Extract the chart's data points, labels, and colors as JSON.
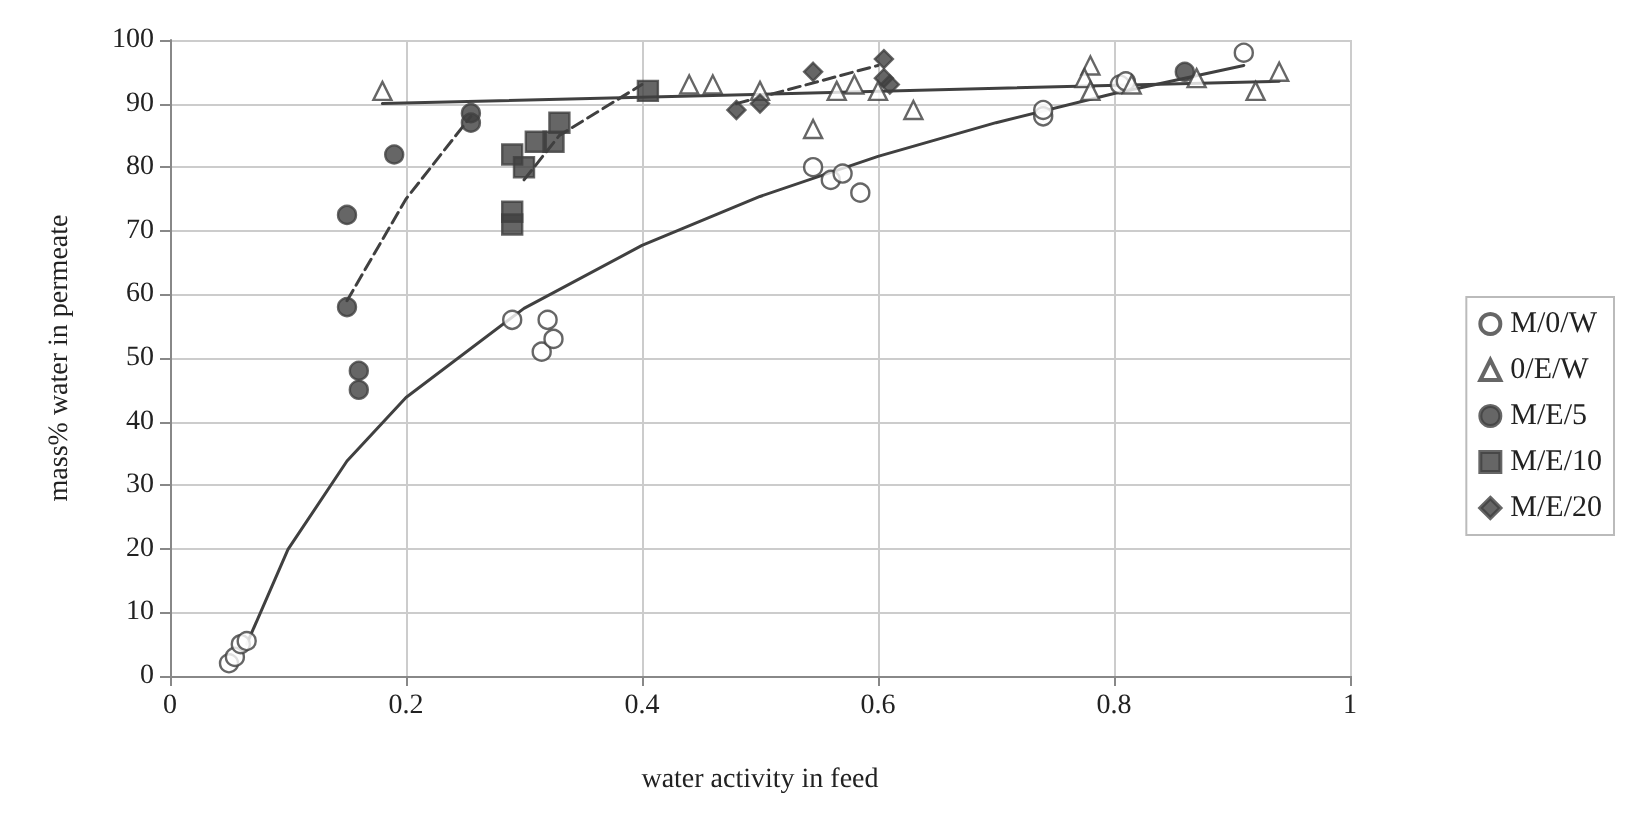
{
  "chart_data": {
    "type": "scatter",
    "xlabel": "water activity in feed",
    "ylabel": "mass% water in permeate",
    "xlim": [
      0,
      1
    ],
    "xticks": [
      0,
      0.2,
      0.4,
      0.6,
      0.8,
      1
    ],
    "ylim": [
      0,
      100
    ],
    "yticks": [
      0,
      10,
      20,
      30,
      40,
      50,
      60,
      70,
      80,
      90,
      100
    ],
    "grid": true,
    "legend": "right",
    "series": [
      {
        "name": "M/0/W",
        "color": "#ffffff",
        "marker": "circle",
        "x": [
          0.05,
          0.055,
          0.06,
          0.065,
          0.29,
          0.32,
          0.315,
          0.325,
          0.545,
          0.56,
          0.57,
          0.585,
          0.74,
          0.74,
          0.805,
          0.81,
          0.91
        ],
        "values": [
          2,
          3,
          5,
          5.5,
          56,
          56,
          51,
          53,
          80,
          78,
          79,
          76,
          88,
          89,
          93,
          93.5,
          98
        ]
      },
      {
        "name": "0/E/W",
        "color": "#ffffff",
        "marker": "triangle",
        "x": [
          0.18,
          0.44,
          0.46,
          0.5,
          0.545,
          0.565,
          0.58,
          0.6,
          0.63,
          0.78,
          0.775,
          0.78,
          0.815,
          0.87,
          0.92,
          0.94
        ],
        "values": [
          92,
          93,
          93,
          92,
          86,
          92,
          93,
          92,
          89,
          96,
          94,
          92,
          93,
          94,
          92,
          95
        ]
      },
      {
        "name": "M/E/5",
        "color": "#404040",
        "marker": "circle",
        "x": [
          0.15,
          0.15,
          0.16,
          0.16,
          0.19,
          0.255,
          0.255,
          0.86
        ],
        "values": [
          58,
          72.5,
          45,
          48,
          82,
          87,
          88.5,
          95
        ]
      },
      {
        "name": "M/E/10",
        "color": "#404040",
        "marker": "square",
        "x": [
          0.29,
          0.29,
          0.29,
          0.3,
          0.31,
          0.325,
          0.33,
          0.405
        ],
        "values": [
          71,
          73,
          82,
          80,
          84,
          84,
          87,
          92
        ]
      },
      {
        "name": "M/E/20",
        "color": "#404040",
        "marker": "diamond",
        "x": [
          0.48,
          0.5,
          0.545,
          0.605,
          0.605,
          0.61
        ],
        "values": [
          89,
          90,
          95,
          97,
          94,
          93
        ]
      },
      {
        "type": "line",
        "color": "#404040",
        "line_style": "solid",
        "x": [
          0.065,
          0.1,
          0.15,
          0.2,
          0.3,
          0.4,
          0.5,
          0.6,
          0.7,
          0.8,
          0.91
        ],
        "values": [
          5,
          19.9,
          33.8,
          43.8,
          57.8,
          67.7,
          75.4,
          81.7,
          87,
          91.6,
          96
        ]
      },
      {
        "type": "line",
        "color": "#404040",
        "line_style": "solid",
        "x": [
          0.18,
          0.94
        ],
        "values": [
          90,
          93.5
        ]
      },
      {
        "type": "line",
        "color": "#404040",
        "line_style": "dashed",
        "x": [
          0.15,
          0.2,
          0.255
        ],
        "values": [
          59,
          75,
          88
        ]
      },
      {
        "type": "line",
        "color": "#404040",
        "line_style": "dashed",
        "x": [
          0.3,
          0.33,
          0.4
        ],
        "values": [
          78,
          85,
          93
        ]
      },
      {
        "type": "line",
        "color": "#404040",
        "line_style": "dashed",
        "x": [
          0.48,
          0.6
        ],
        "values": [
          90,
          96
        ]
      }
    ]
  }
}
